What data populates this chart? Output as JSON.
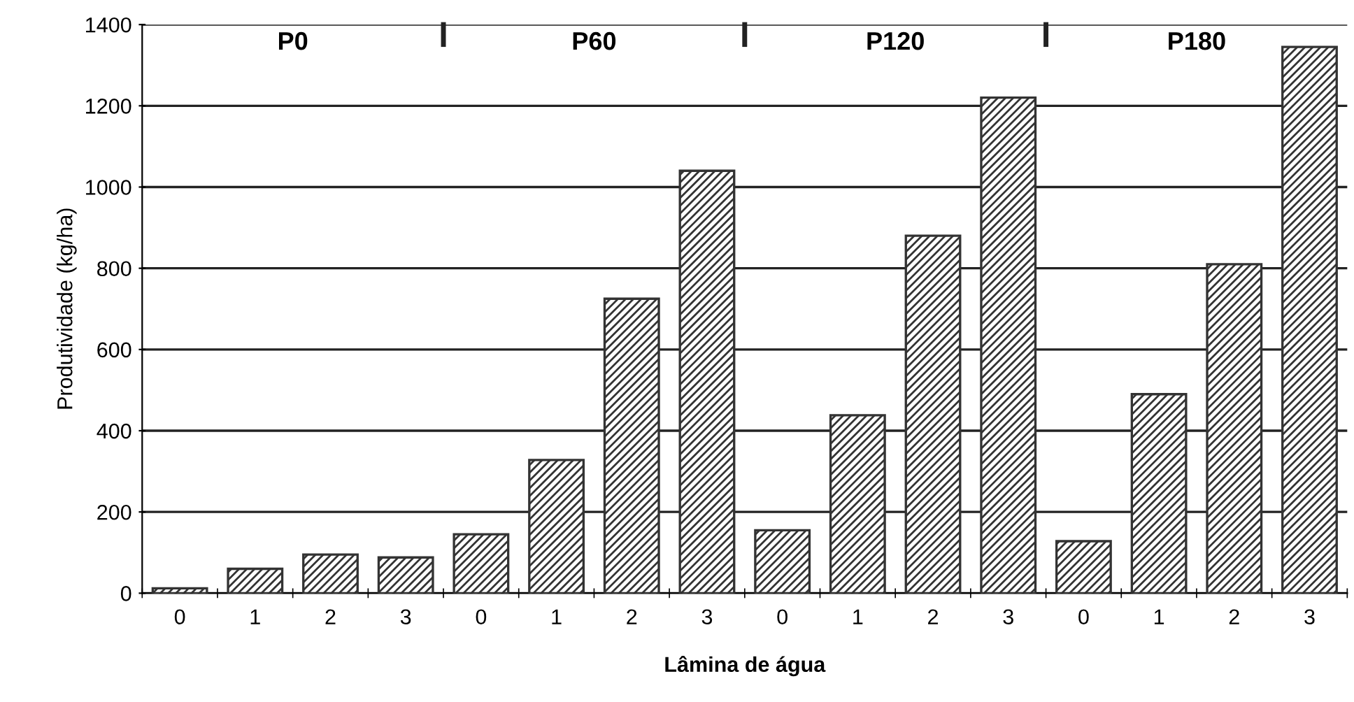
{
  "chart_data": {
    "type": "bar",
    "xlabel": "Lâmina de água",
    "ylabel": "Produtividade (kg/ha)",
    "categories": [
      "0",
      "1",
      "2",
      "3",
      "0",
      "1",
      "2",
      "3",
      "0",
      "1",
      "2",
      "3",
      "0",
      "1",
      "2",
      "3"
    ],
    "values": [
      12,
      60,
      95,
      88,
      145,
      328,
      725,
      1040,
      155,
      438,
      880,
      1220,
      128,
      490,
      810,
      1345
    ],
    "color": "#333333",
    "annotations": [
      "P0",
      "P60",
      "P120",
      "P180"
    ],
    "ylim": [
      0,
      1400
    ],
    "yticks": [
      0,
      200,
      400,
      600,
      800,
      1000,
      1200,
      1400
    ],
    "grid": "y",
    "legend": false
  }
}
